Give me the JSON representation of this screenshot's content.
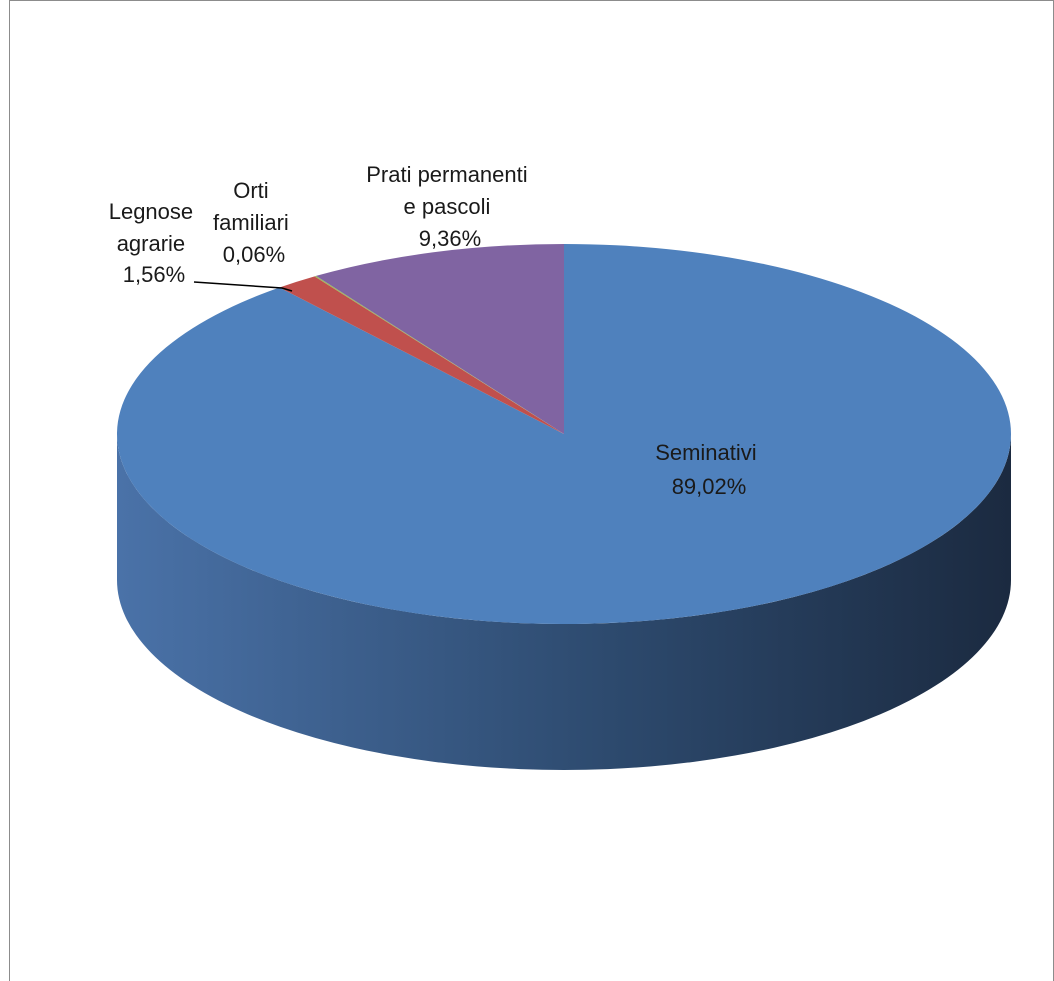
{
  "chart_data": {
    "type": "pie",
    "style": "3d",
    "slices": [
      {
        "label_lines": [
          "Seminativi"
        ],
        "value_text": "89,02%",
        "value": 89.02,
        "color": "#4f81bd",
        "side_dark": "#1f2f47",
        "side_light": "#4a72a8"
      },
      {
        "label_lines": [
          "Legnose",
          "agrarie"
        ],
        "value_text": "1,56%",
        "value": 1.56,
        "color": "#c0504d"
      },
      {
        "label_lines": [
          "Orti",
          "familiari"
        ],
        "value_text": "0,06%",
        "value": 0.06,
        "color": "#9bbb59"
      },
      {
        "label_lines": [
          "Prati permanenti",
          "e pascoli"
        ],
        "value_text": "9,36%",
        "value": 9.36,
        "color": "#8064a2"
      }
    ]
  }
}
